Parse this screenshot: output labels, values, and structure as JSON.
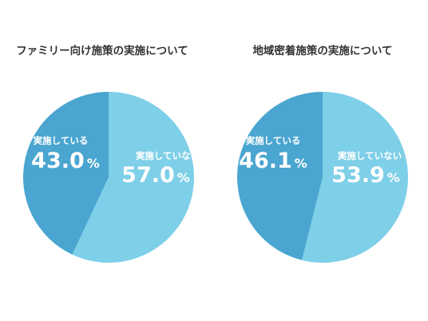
{
  "chart_data": [
    {
      "type": "pie",
      "title": "ファミリー向け施策の実施について",
      "slices": [
        {
          "label": "実施していない",
          "value": 57.0,
          "display": "57.0",
          "color": "#7ecfe8"
        },
        {
          "label": "実施している",
          "value": 43.0,
          "display": "43.0",
          "color": "#4aa5d0"
        }
      ],
      "unit": "%"
    },
    {
      "type": "pie",
      "title": "地域密着施策の実施について",
      "slices": [
        {
          "label": "実施していない",
          "value": 53.9,
          "display": "53.9",
          "color": "#7ecfe8"
        },
        {
          "label": "実施している",
          "value": 46.1,
          "display": "46.1",
          "color": "#4aa5d0"
        }
      ],
      "unit": "%"
    }
  ]
}
